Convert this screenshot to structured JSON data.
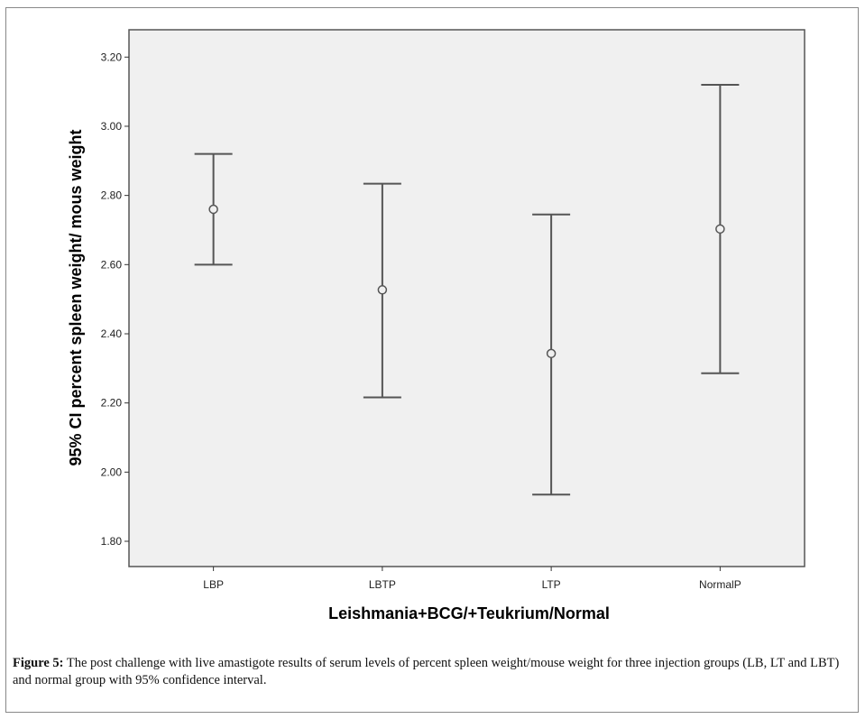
{
  "chart_data": {
    "type": "errorbar",
    "xlabel": "Leishmania+BCG/+Teukrium/Normal",
    "ylabel": "95% CI percent spleen weight/ mous weight",
    "categories": [
      "LBP",
      "LBTP",
      "LTP",
      "NormalP"
    ],
    "mean": [
      2.76,
      2.527,
      2.343,
      2.703
    ],
    "ci_lower": [
      2.6,
      2.216,
      1.935,
      2.286
    ],
    "ci_upper": [
      2.92,
      2.834,
      2.745,
      3.12
    ],
    "yticks": [
      "1.80",
      "2.00",
      "2.20",
      "2.40",
      "2.60",
      "2.80",
      "3.00",
      "3.20"
    ],
    "ylim": [
      1.727,
      3.279
    ],
    "grid": false,
    "colors": {
      "plot_bg": "#f0f0f0",
      "bar": "#555555"
    }
  },
  "caption": {
    "label": "Figure 5:",
    "text": " The post challenge with live amastigote results of serum levels of percent spleen weight/mouse weight for three injection groups (LB, LT and LBT) and normal group with 95% confidence interval."
  }
}
